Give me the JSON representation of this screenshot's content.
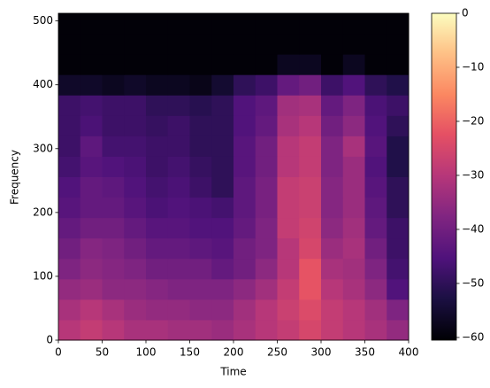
{
  "chart_data": {
    "type": "heatmap",
    "xlabel": "Time",
    "ylabel": "Frequency",
    "colormap": "magma",
    "xbins": [
      0,
      25,
      50,
      75,
      100,
      125,
      150,
      175,
      200,
      225,
      250,
      275,
      300,
      325,
      350,
      375,
      400
    ],
    "ybins": [
      0,
      32,
      64,
      96,
      128,
      160,
      192,
      224,
      256,
      288,
      320,
      352,
      384,
      416,
      448,
      480,
      512
    ],
    "z": [
      [
        -30,
        -28,
        -30,
        -32,
        -32,
        -33,
        -33,
        -34,
        -32,
        -30,
        -28,
        -25,
        -28,
        -30,
        -32,
        -35
      ],
      [
        -32,
        -30,
        -32,
        -34,
        -35,
        -35,
        -36,
        -36,
        -33,
        -30,
        -27,
        -24,
        -28,
        -30,
        -33,
        -38
      ],
      [
        -35,
        -34,
        -36,
        -36,
        -37,
        -38,
        -38,
        -38,
        -36,
        -33,
        -28,
        -22,
        -30,
        -32,
        -36,
        -45
      ],
      [
        -38,
        -36,
        -37,
        -38,
        -40,
        -40,
        -40,
        -42,
        -40,
        -36,
        -30,
        -22,
        -32,
        -33,
        -38,
        -47
      ],
      [
        -40,
        -37,
        -38,
        -40,
        -42,
        -42,
        -43,
        -44,
        -40,
        -38,
        -30,
        -25,
        -34,
        -32,
        -40,
        -48
      ],
      [
        -42,
        -40,
        -40,
        -42,
        -44,
        -44,
        -45,
        -45,
        -42,
        -38,
        -28,
        -26,
        -36,
        -33,
        -42,
        -48
      ],
      [
        -44,
        -42,
        -42,
        -44,
        -46,
        -45,
        -46,
        -47,
        -43,
        -39,
        -28,
        -27,
        -37,
        -34,
        -43,
        -50
      ],
      [
        -45,
        -42,
        -43,
        -45,
        -47,
        -46,
        -48,
        -50,
        -43,
        -39,
        -28,
        -27,
        -37,
        -34,
        -44,
        -50
      ],
      [
        -47,
        -44,
        -45,
        -46,
        -48,
        -47,
        -49,
        -50,
        -44,
        -40,
        -30,
        -28,
        -38,
        -34,
        -45,
        -52
      ],
      [
        -48,
        -43,
        -47,
        -47,
        -48,
        -48,
        -50,
        -50,
        -44,
        -40,
        -30,
        -28,
        -38,
        -32,
        -44,
        -52
      ],
      [
        -48,
        -46,
        -48,
        -48,
        -49,
        -48,
        -50,
        -50,
        -45,
        -42,
        -32,
        -30,
        -40,
        -36,
        -45,
        -50
      ],
      [
        -48,
        -47,
        -48,
        -48,
        -50,
        -50,
        -51,
        -50,
        -45,
        -43,
        -33,
        -32,
        -42,
        -38,
        -46,
        -48
      ],
      [
        -56,
        -56,
        -57,
        -56,
        -57,
        -57,
        -58,
        -55,
        -50,
        -48,
        -42,
        -40,
        -48,
        -45,
        -50,
        -52
      ],
      [
        -60,
        -60,
        -60,
        -60,
        -60,
        -60,
        -60,
        -60,
        -60,
        -60,
        -57,
        -57,
        -60,
        -57,
        -60,
        -60
      ],
      [
        -60,
        -60,
        -60,
        -60,
        -60,
        -60,
        -60,
        -60,
        -60,
        -60,
        -60,
        -60,
        -60,
        -60,
        -60,
        -60
      ],
      [
        -60,
        -60,
        -60,
        -60,
        -60,
        -60,
        -60,
        -60,
        -60,
        -60,
        -60,
        -60,
        -60,
        -60,
        -60,
        -60
      ]
    ],
    "xlim": [
      0,
      400
    ],
    "xticks": [
      0,
      50,
      100,
      150,
      200,
      250,
      300,
      350,
      400
    ],
    "ylim": [
      0,
      512
    ],
    "yticks": [
      0,
      100,
      200,
      300,
      400,
      500
    ],
    "zlim": [
      -60.5,
      0
    ],
    "zticks": [
      {
        "value": 0,
        "label": "0"
      },
      {
        "value": -10,
        "label": "−10"
      },
      {
        "value": -20,
        "label": "−20"
      },
      {
        "value": -30,
        "label": "−30"
      },
      {
        "value": -40,
        "label": "−40"
      },
      {
        "value": -50,
        "label": "−50"
      },
      {
        "value": -60,
        "label": "−60"
      }
    ]
  }
}
